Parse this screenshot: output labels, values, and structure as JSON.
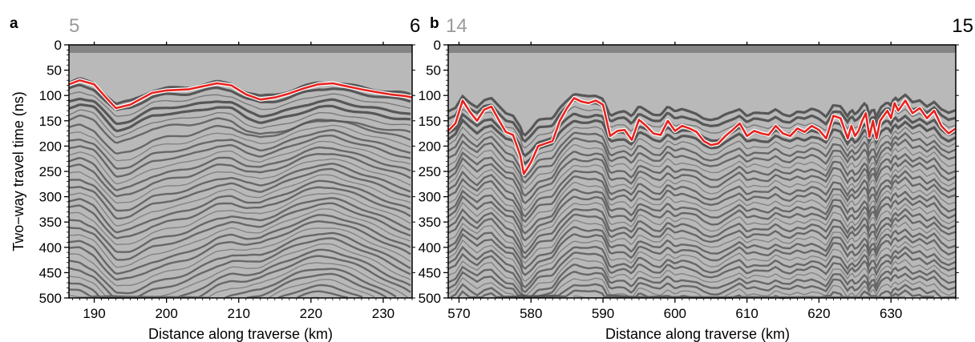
{
  "chart_data": [
    {
      "type": "line",
      "panel_label": "a",
      "corner_labels": {
        "left": "5",
        "right": "6"
      },
      "xlabel": "Distance along traverse (km)",
      "ylabel": "Two−way travel time (ns)",
      "xlim": [
        186.5,
        234
      ],
      "ylim": [
        500,
        0
      ],
      "xticks": [
        190,
        200,
        210,
        220,
        230
      ],
      "yticks": [
        0,
        50,
        100,
        150,
        200,
        250,
        300,
        350,
        400,
        450,
        500
      ],
      "background": "radar profile (grayscale reflections)",
      "series": [
        {
          "color": "#e8221e",
          "x": [
            186.5,
            188,
            190,
            192,
            193,
            195,
            198,
            200,
            203,
            205,
            207,
            209,
            211,
            213,
            215,
            217,
            219,
            221,
            223,
            225,
            227,
            229,
            231,
            233,
            234
          ],
          "y": [
            78,
            70,
            78,
            110,
            125,
            118,
            95,
            90,
            88,
            82,
            76,
            80,
            98,
            108,
            104,
            96,
            86,
            78,
            76,
            82,
            88,
            93,
            98,
            101,
            104
          ]
        }
      ]
    },
    {
      "type": "line",
      "panel_label": "b",
      "corner_labels": {
        "left": "14",
        "right": "15"
      },
      "xlabel": "Distance along traverse (km)",
      "ylabel": "",
      "xlim": [
        568.5,
        639
      ],
      "ylim": [
        500,
        0
      ],
      "xticks": [
        570,
        580,
        590,
        600,
        610,
        620,
        630
      ],
      "yticks": [
        0,
        50,
        100,
        150,
        200,
        250,
        300,
        350,
        400,
        450,
        500
      ],
      "background": "radar profile (grayscale reflections)",
      "series": [
        {
          "color": "#e8221e",
          "x": [
            568.5,
            569.5,
            570.5,
            571.5,
            572.5,
            573.5,
            574.5,
            575.5,
            576.5,
            577.5,
            578.5,
            579,
            580,
            581,
            582,
            583,
            584,
            585,
            586,
            587,
            588,
            589,
            590,
            591,
            592,
            593,
            594,
            595,
            596,
            597,
            598,
            599,
            600,
            601,
            602,
            603,
            604,
            605,
            606,
            607,
            608,
            609,
            610,
            611,
            612,
            613,
            614,
            615,
            616,
            617,
            618,
            619,
            620,
            621,
            622,
            623,
            624,
            624.5,
            625,
            625.5,
            626,
            626.5,
            627,
            627.5,
            628,
            628.5,
            629,
            629.5,
            630,
            630.5,
            631,
            632,
            633,
            634,
            635,
            636,
            637,
            638,
            639
          ],
          "y": [
            170,
            155,
            110,
            132,
            150,
            128,
            122,
            148,
            172,
            178,
            218,
            255,
            232,
            200,
            195,
            190,
            150,
            125,
            105,
            112,
            115,
            110,
            118,
            180,
            170,
            168,
            188,
            148,
            160,
            175,
            178,
            150,
            170,
            160,
            165,
            172,
            190,
            198,
            195,
            180,
            168,
            155,
            180,
            170,
            175,
            178,
            160,
            175,
            180,
            165,
            172,
            160,
            168,
            185,
            140,
            145,
            185,
            160,
            180,
            170,
            150,
            135,
            182,
            150,
            185,
            150,
            140,
            130,
            145,
            115,
            130,
            110,
            135,
            125,
            145,
            130,
            160,
            175,
            165
          ]
        }
      ]
    }
  ]
}
